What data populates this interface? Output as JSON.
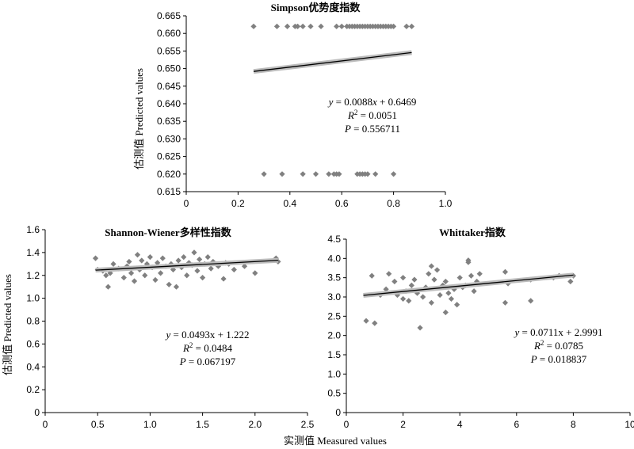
{
  "chart_data": [
    {
      "type": "scatter",
      "title": "Simpson优势度指数",
      "xlim": [
        0,
        1.0
      ],
      "ylim": [
        0.615,
        0.665
      ],
      "x_ticks": [
        "0",
        "0.2",
        "0.4",
        "0.6",
        "0.8",
        "1.0"
      ],
      "y_ticks": [
        "0.615",
        "0.620",
        "0.625",
        "0.630",
        "0.635",
        "0.640",
        "0.645",
        "0.650",
        "0.655",
        "0.660",
        "0.665"
      ],
      "points": [
        [
          0.26,
          0.662
        ],
        [
          0.35,
          0.662
        ],
        [
          0.39,
          0.662
        ],
        [
          0.42,
          0.662
        ],
        [
          0.43,
          0.662
        ],
        [
          0.45,
          0.662
        ],
        [
          0.48,
          0.662
        ],
        [
          0.52,
          0.662
        ],
        [
          0.58,
          0.662
        ],
        [
          0.6,
          0.662
        ],
        [
          0.62,
          0.662
        ],
        [
          0.63,
          0.662
        ],
        [
          0.64,
          0.662
        ],
        [
          0.65,
          0.662
        ],
        [
          0.66,
          0.662
        ],
        [
          0.67,
          0.662
        ],
        [
          0.68,
          0.662
        ],
        [
          0.69,
          0.662
        ],
        [
          0.7,
          0.662
        ],
        [
          0.71,
          0.662
        ],
        [
          0.72,
          0.662
        ],
        [
          0.73,
          0.662
        ],
        [
          0.74,
          0.662
        ],
        [
          0.75,
          0.662
        ],
        [
          0.76,
          0.662
        ],
        [
          0.77,
          0.662
        ],
        [
          0.78,
          0.662
        ],
        [
          0.79,
          0.662
        ],
        [
          0.8,
          0.662
        ],
        [
          0.85,
          0.662
        ],
        [
          0.87,
          0.662
        ],
        [
          0.3,
          0.62
        ],
        [
          0.37,
          0.62
        ],
        [
          0.45,
          0.62
        ],
        [
          0.5,
          0.62
        ],
        [
          0.55,
          0.62
        ],
        [
          0.57,
          0.62
        ],
        [
          0.58,
          0.62
        ],
        [
          0.59,
          0.62
        ],
        [
          0.66,
          0.62
        ],
        [
          0.67,
          0.62
        ],
        [
          0.68,
          0.62
        ],
        [
          0.69,
          0.62
        ],
        [
          0.7,
          0.62
        ],
        [
          0.73,
          0.62
        ],
        [
          0.8,
          0.62
        ]
      ],
      "fit": {
        "slope": 0.0088,
        "intercept": 0.6469,
        "x_range": [
          0.26,
          0.87
        ]
      },
      "annotation": [
        "y = 0.0088x + 0.6469",
        "R2 = 0.0051",
        "P = 0.556711"
      ],
      "ylabel": "估测值 Predicted values",
      "xlabel": ""
    },
    {
      "type": "scatter",
      "title": "Shannon-Wiener多样性指数",
      "xlim": [
        0,
        2.5
      ],
      "ylim": [
        0,
        1.6
      ],
      "x_ticks": [
        "0",
        "0.5",
        "1.0",
        "1.5",
        "2.0",
        "2.5"
      ],
      "y_ticks": [
        "0",
        "0.2",
        "0.4",
        "0.6",
        "0.8",
        "1.0",
        "1.2",
        "1.4",
        "1.6"
      ],
      "points": [
        [
          0.48,
          1.35
        ],
        [
          0.5,
          1.25
        ],
        [
          0.55,
          1.24
        ],
        [
          0.58,
          1.2
        ],
        [
          0.6,
          1.1
        ],
        [
          0.62,
          1.22
        ],
        [
          0.65,
          1.3
        ],
        [
          0.7,
          1.26
        ],
        [
          0.75,
          1.18
        ],
        [
          0.78,
          1.28
        ],
        [
          0.8,
          1.32
        ],
        [
          0.82,
          1.22
        ],
        [
          0.85,
          1.15
        ],
        [
          0.88,
          1.38
        ],
        [
          0.9,
          1.25
        ],
        [
          0.92,
          1.33
        ],
        [
          0.95,
          1.2
        ],
        [
          0.97,
          1.3
        ],
        [
          1.0,
          1.36
        ],
        [
          1.02,
          1.27
        ],
        [
          1.05,
          1.16
        ],
        [
          1.07,
          1.31
        ],
        [
          1.1,
          1.22
        ],
        [
          1.12,
          1.35
        ],
        [
          1.15,
          1.28
        ],
        [
          1.18,
          1.12
        ],
        [
          1.2,
          1.3
        ],
        [
          1.22,
          1.25
        ],
        [
          1.25,
          1.1
        ],
        [
          1.27,
          1.33
        ],
        [
          1.3,
          1.27
        ],
        [
          1.32,
          1.36
        ],
        [
          1.35,
          1.2
        ],
        [
          1.37,
          1.31
        ],
        [
          1.4,
          1.29
        ],
        [
          1.42,
          1.4
        ],
        [
          1.45,
          1.24
        ],
        [
          1.47,
          1.34
        ],
        [
          1.5,
          1.18
        ],
        [
          1.52,
          1.3
        ],
        [
          1.55,
          1.36
        ],
        [
          1.58,
          1.26
        ],
        [
          1.6,
          1.32
        ],
        [
          1.65,
          1.28
        ],
        [
          1.7,
          1.17
        ],
        [
          1.72,
          1.31
        ],
        [
          1.75,
          1.3
        ],
        [
          1.8,
          1.25
        ],
        [
          1.9,
          1.28
        ],
        [
          2.0,
          1.22
        ],
        [
          2.2,
          1.35
        ],
        [
          2.22,
          1.32
        ]
      ],
      "fit": {
        "slope": 0.0493,
        "intercept": 1.222,
        "x_range": [
          0.48,
          2.22
        ]
      },
      "annotation": [
        "y = 0.0493x + 1.222",
        "R2 = 0.0484",
        "P = 0.067197"
      ],
      "ylabel": "估测值 Predicted values",
      "xlabel": "实测值 Measured values"
    },
    {
      "type": "scatter",
      "title": "Whittaker指数",
      "xlim": [
        0,
        10
      ],
      "ylim": [
        0,
        4.5
      ],
      "x_ticks": [
        "0",
        "2",
        "4",
        "6",
        "8",
        "10"
      ],
      "y_ticks": [
        "0",
        "0.5",
        "1.0",
        "1.5",
        "2.0",
        "2.5",
        "3.0",
        "3.5",
        "4.0",
        "4.5"
      ],
      "points": [
        [
          0.7,
          2.38
        ],
        [
          1.0,
          2.32
        ],
        [
          0.9,
          3.55
        ],
        [
          1.2,
          3.05
        ],
        [
          1.4,
          3.2
        ],
        [
          1.5,
          3.6
        ],
        [
          1.7,
          3.4
        ],
        [
          1.8,
          3.05
        ],
        [
          2.0,
          2.95
        ],
        [
          2.0,
          3.5
        ],
        [
          2.1,
          3.15
        ],
        [
          2.2,
          2.9
        ],
        [
          2.3,
          3.3
        ],
        [
          2.4,
          3.45
        ],
        [
          2.5,
          3.1
        ],
        [
          2.6,
          2.2
        ],
        [
          2.7,
          3.0
        ],
        [
          2.8,
          3.25
        ],
        [
          2.9,
          3.6
        ],
        [
          3.0,
          3.8
        ],
        [
          3.0,
          2.85
        ],
        [
          3.1,
          3.45
        ],
        [
          3.2,
          3.7
        ],
        [
          3.3,
          3.05
        ],
        [
          3.4,
          3.3
        ],
        [
          3.5,
          3.4
        ],
        [
          3.5,
          2.6
        ],
        [
          3.6,
          3.1
        ],
        [
          3.7,
          2.95
        ],
        [
          3.8,
          3.2
        ],
        [
          3.9,
          2.8
        ],
        [
          4.0,
          3.5
        ],
        [
          4.1,
          3.25
        ],
        [
          4.2,
          3.3
        ],
        [
          4.3,
          3.9
        ],
        [
          4.3,
          3.95
        ],
        [
          4.4,
          3.55
        ],
        [
          4.5,
          3.15
        ],
        [
          4.6,
          3.4
        ],
        [
          4.7,
          3.6
        ],
        [
          5.6,
          3.65
        ],
        [
          5.6,
          2.85
        ],
        [
          5.7,
          3.35
        ],
        [
          6.5,
          3.45
        ],
        [
          6.5,
          2.9
        ],
        [
          7.3,
          3.5
        ],
        [
          7.5,
          3.55
        ],
        [
          7.9,
          3.4
        ],
        [
          8.0,
          3.55
        ]
      ],
      "fit": {
        "slope": 0.0711,
        "intercept": 2.9991,
        "x_range": [
          0.6,
          8.0
        ]
      },
      "annotation": [
        "y = 0.0711x + 2.9991",
        "R2 = 0.0785",
        "P = 0.018837"
      ],
      "ylabel": "",
      "xlabel": ""
    }
  ],
  "shared": {
    "ylabel_top": "估测值 Predicted values",
    "ylabel_bottom": "估测值 Predicted values",
    "xlabel_bottom": "实测值 Measured values"
  }
}
